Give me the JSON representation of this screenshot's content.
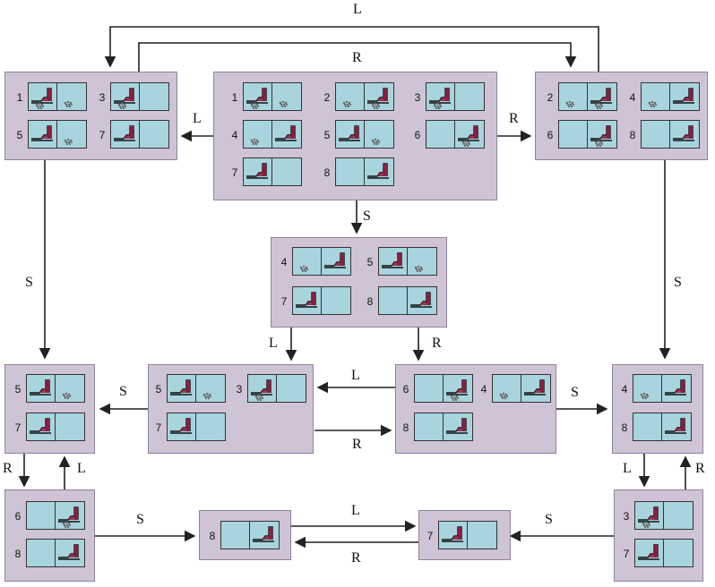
{
  "nodes": [
    {
      "id": "top-left",
      "states": [
        {
          "num": "1",
          "left": {
            "vac": true,
            "dirt": true
          },
          "right": {
            "vac": false,
            "dirt": true
          }
        },
        {
          "num": "3",
          "left": {
            "vac": true,
            "dirt": true
          },
          "right": {
            "vac": false,
            "dirt": false
          }
        },
        {
          "num": "5",
          "left": {
            "vac": true,
            "dirt": false
          },
          "right": {
            "vac": false,
            "dirt": true
          }
        },
        {
          "num": "7",
          "left": {
            "vac": true,
            "dirt": false
          },
          "right": {
            "vac": false,
            "dirt": false
          }
        }
      ]
    },
    {
      "id": "top-center",
      "states": [
        {
          "num": "1",
          "left": {
            "vac": true,
            "dirt": true
          },
          "right": {
            "vac": false,
            "dirt": true
          }
        },
        {
          "num": "2",
          "left": {
            "vac": false,
            "dirt": true
          },
          "right": {
            "vac": true,
            "dirt": true
          }
        },
        {
          "num": "3",
          "left": {
            "vac": true,
            "dirt": true
          },
          "right": {
            "vac": false,
            "dirt": false
          }
        },
        {
          "num": "4",
          "left": {
            "vac": false,
            "dirt": true
          },
          "right": {
            "vac": true,
            "dirt": false
          }
        },
        {
          "num": "5",
          "left": {
            "vac": true,
            "dirt": false
          },
          "right": {
            "vac": false,
            "dirt": true
          }
        },
        {
          "num": "6",
          "left": {
            "vac": false,
            "dirt": false
          },
          "right": {
            "vac": true,
            "dirt": true
          }
        },
        {
          "num": "7",
          "left": {
            "vac": true,
            "dirt": false
          },
          "right": {
            "vac": false,
            "dirt": false
          }
        },
        {
          "num": "8",
          "left": {
            "vac": false,
            "dirt": false
          },
          "right": {
            "vac": true,
            "dirt": false
          }
        }
      ]
    },
    {
      "id": "top-right",
      "states": [
        {
          "num": "2",
          "left": {
            "vac": false,
            "dirt": true
          },
          "right": {
            "vac": true,
            "dirt": true
          }
        },
        {
          "num": "4",
          "left": {
            "vac": false,
            "dirt": true
          },
          "right": {
            "vac": true,
            "dirt": false
          }
        },
        {
          "num": "6",
          "left": {
            "vac": false,
            "dirt": false
          },
          "right": {
            "vac": true,
            "dirt": true
          }
        },
        {
          "num": "8",
          "left": {
            "vac": false,
            "dirt": false
          },
          "right": {
            "vac": true,
            "dirt": false
          }
        }
      ]
    },
    {
      "id": "mid-center",
      "states": [
        {
          "num": "4",
          "left": {
            "vac": false,
            "dirt": true
          },
          "right": {
            "vac": true,
            "dirt": false
          }
        },
        {
          "num": "5",
          "left": {
            "vac": true,
            "dirt": false
          },
          "right": {
            "vac": false,
            "dirt": true
          }
        },
        {
          "num": "7",
          "left": {
            "vac": true,
            "dirt": false
          },
          "right": {
            "vac": false,
            "dirt": false
          }
        },
        {
          "num": "8",
          "left": {
            "vac": false,
            "dirt": false
          },
          "right": {
            "vac": true,
            "dirt": false
          }
        }
      ]
    },
    {
      "id": "row3-a",
      "states": [
        {
          "num": "5",
          "left": {
            "vac": true,
            "dirt": false
          },
          "right": {
            "vac": false,
            "dirt": true
          }
        },
        {
          "num": "7",
          "left": {
            "vac": true,
            "dirt": false
          },
          "right": {
            "vac": false,
            "dirt": false
          }
        }
      ]
    },
    {
      "id": "row3-b",
      "states": [
        {
          "num": "5",
          "left": {
            "vac": true,
            "dirt": false
          },
          "right": {
            "vac": false,
            "dirt": true
          }
        },
        {
          "num": "3",
          "left": {
            "vac": true,
            "dirt": true
          },
          "right": {
            "vac": false,
            "dirt": false
          }
        },
        {
          "num": "7",
          "left": {
            "vac": true,
            "dirt": false
          },
          "right": {
            "vac": false,
            "dirt": false
          }
        }
      ]
    },
    {
      "id": "row3-c",
      "states": [
        {
          "num": "6",
          "left": {
            "vac": false,
            "dirt": false
          },
          "right": {
            "vac": true,
            "dirt": true
          }
        },
        {
          "num": "4",
          "left": {
            "vac": false,
            "dirt": true
          },
          "right": {
            "vac": true,
            "dirt": false
          }
        },
        {
          "num": "8",
          "left": {
            "vac": false,
            "dirt": false
          },
          "right": {
            "vac": true,
            "dirt": false
          }
        }
      ]
    },
    {
      "id": "row3-d",
      "states": [
        {
          "num": "4",
          "left": {
            "vac": false,
            "dirt": true
          },
          "right": {
            "vac": true,
            "dirt": false
          }
        },
        {
          "num": "8",
          "left": {
            "vac": false,
            "dirt": false
          },
          "right": {
            "vac": true,
            "dirt": false
          }
        }
      ]
    },
    {
      "id": "row4-a",
      "states": [
        {
          "num": "6",
          "left": {
            "vac": false,
            "dirt": false
          },
          "right": {
            "vac": true,
            "dirt": true
          }
        },
        {
          "num": "8",
          "left": {
            "vac": false,
            "dirt": false
          },
          "right": {
            "vac": true,
            "dirt": false
          }
        }
      ]
    },
    {
      "id": "row4-b",
      "states": [
        {
          "num": "8",
          "left": {
            "vac": false,
            "dirt": false
          },
          "right": {
            "vac": true,
            "dirt": false
          }
        }
      ]
    },
    {
      "id": "row4-c",
      "states": [
        {
          "num": "7",
          "left": {
            "vac": true,
            "dirt": false
          },
          "right": {
            "vac": false,
            "dirt": false
          }
        }
      ]
    },
    {
      "id": "row4-d",
      "states": [
        {
          "num": "3",
          "left": {
            "vac": true,
            "dirt": true
          },
          "right": {
            "vac": false,
            "dirt": false
          }
        },
        {
          "num": "7",
          "left": {
            "vac": true,
            "dirt": false
          },
          "right": {
            "vac": false,
            "dirt": false
          }
        }
      ]
    }
  ],
  "edges": [
    {
      "from": "top-right",
      "to": "top-left",
      "label": "L"
    },
    {
      "from": "top-left",
      "to": "top-right",
      "label": "R"
    },
    {
      "from": "top-center",
      "to": "top-left",
      "label": "L"
    },
    {
      "from": "top-center",
      "to": "top-right",
      "label": "R"
    },
    {
      "from": "top-center",
      "to": "mid-center",
      "label": "S"
    },
    {
      "from": "top-left",
      "to": "row3-a",
      "label": "S"
    },
    {
      "from": "top-right",
      "to": "row3-d",
      "label": "S"
    },
    {
      "from": "mid-center",
      "to": "row3-b",
      "label": "L"
    },
    {
      "from": "mid-center",
      "to": "row3-c",
      "label": "R"
    },
    {
      "from": "row3-b",
      "to": "row3-a",
      "label": "S"
    },
    {
      "from": "row3-c",
      "to": "row3-b",
      "label": "L"
    },
    {
      "from": "row3-b",
      "to": "row3-c",
      "label": "R"
    },
    {
      "from": "row3-c",
      "to": "row3-d",
      "label": "S"
    },
    {
      "from": "row3-a",
      "to": "row4-a",
      "label": "R"
    },
    {
      "from": "row4-a",
      "to": "row3-a",
      "label": "L"
    },
    {
      "from": "row3-d",
      "to": "row4-d",
      "label": "L"
    },
    {
      "from": "row4-d",
      "to": "row3-d",
      "label": "R"
    },
    {
      "from": "row4-a",
      "to": "row4-b",
      "label": "S"
    },
    {
      "from": "row4-b",
      "to": "row4-c",
      "label": "L"
    },
    {
      "from": "row4-c",
      "to": "row4-b",
      "label": "R"
    },
    {
      "from": "row4-d",
      "to": "row4-c",
      "label": "S"
    }
  ],
  "colors": {
    "node": "#cfc3d6",
    "cell": "#a8d4de",
    "vacuum": "#8b1e3f",
    "dirt": "#6a6a6a",
    "line": "#222222"
  }
}
